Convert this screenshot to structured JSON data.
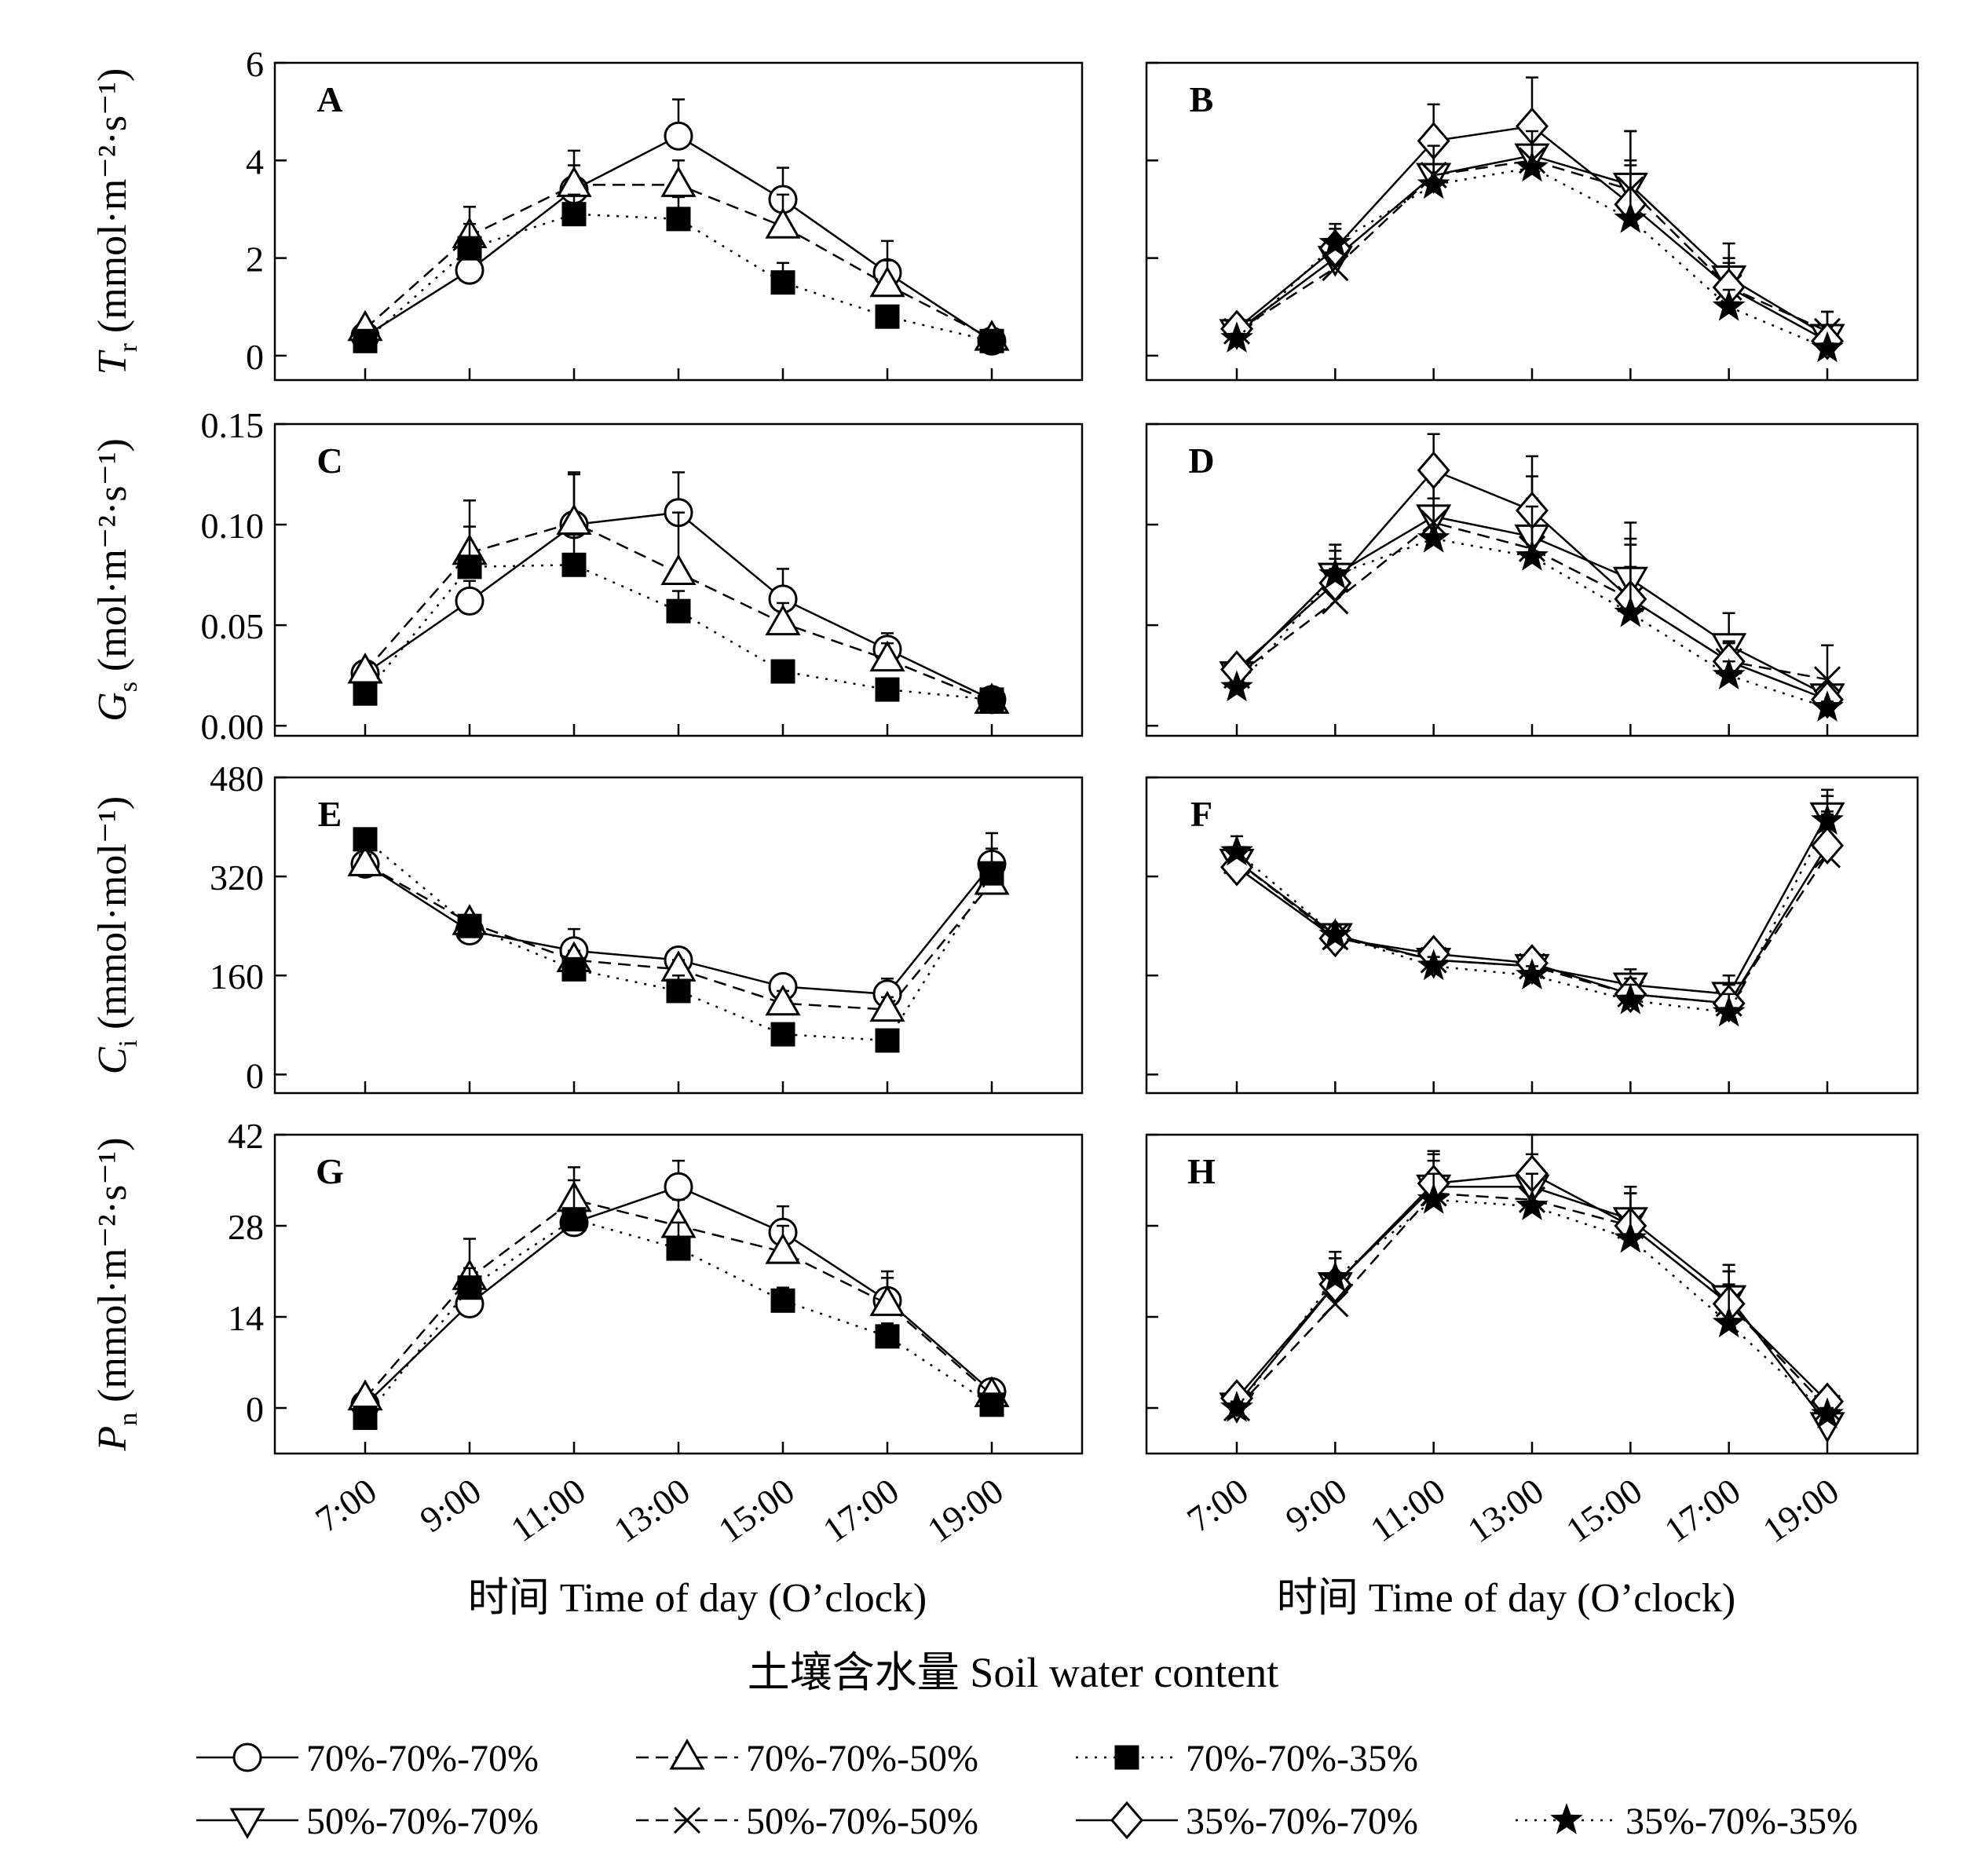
{
  "figure": {
    "xlabel": "时间  Time of day (O’clock)",
    "soil_label": "土壤含水量 Soil water content"
  },
  "series_styles": [
    {
      "key": "s1",
      "name": "70%-70%-70%",
      "marker": "circle",
      "dash": "solid"
    },
    {
      "key": "s2",
      "name": "70%-70%-50%",
      "marker": "triangle",
      "dash": "dashed"
    },
    {
      "key": "s3",
      "name": "70%-70%-35%",
      "marker": "square",
      "dash": "dotted"
    },
    {
      "key": "s4",
      "name": "50%-70%-70%",
      "marker": "triangle-down",
      "dash": "solid"
    },
    {
      "key": "s5",
      "name": "50%-70%-50%",
      "marker": "x",
      "dash": "dashed"
    },
    {
      "key": "s6",
      "name": "35%-70%-70%",
      "marker": "diamond",
      "dash": "solid"
    },
    {
      "key": "s7",
      "name": "35%-70%-35%",
      "marker": "star",
      "dash": "dotted"
    }
  ],
  "chart_data": [
    {
      "panel": "A",
      "type": "line",
      "ylabel_main": "T",
      "ylabel_sub": "r",
      "ylabel_unit": "(mmol·m⁻²·s⁻¹)",
      "x": [
        "7:00",
        "9:00",
        "11:00",
        "13:00",
        "15:00",
        "17:00",
        "19:00"
      ],
      "ylim": [
        -0.5,
        6
      ],
      "yticks": [
        0,
        2,
        4,
        6
      ],
      "ytick_labels": [
        "0",
        "2",
        "4",
        "6"
      ],
      "series": [
        {
          "key": "s1",
          "values": [
            0.4,
            1.75,
            3.4,
            4.5,
            3.2,
            1.7,
            0.3
          ],
          "err": [
            0.1,
            0.3,
            0.5,
            0.75,
            0.65,
            0.65,
            0.1
          ]
        },
        {
          "key": "s2",
          "values": [
            0.55,
            2.45,
            3.5,
            3.5,
            2.65,
            1.45,
            0.35
          ],
          "err": [
            0.1,
            0.6,
            0.7,
            0.5,
            0.65,
            0.5,
            0.1
          ]
        },
        {
          "key": "s3",
          "values": [
            0.3,
            2.2,
            2.9,
            2.8,
            1.5,
            0.8,
            0.3
          ],
          "err": [
            0.1,
            0.5,
            0.4,
            0.45,
            0.4,
            0.15,
            0.1
          ]
        }
      ]
    },
    {
      "panel": "B",
      "type": "line",
      "x": [
        "7:00",
        "9:00",
        "11:00",
        "13:00",
        "15:00",
        "17:00",
        "19:00"
      ],
      "ylim": [
        -0.5,
        6
      ],
      "yticks": [
        0,
        2,
        4,
        6
      ],
      "series": [
        {
          "key": "s4",
          "values": [
            0.5,
            2.0,
            3.7,
            4.1,
            3.5,
            1.6,
            0.4
          ],
          "err": [
            0.1,
            0.4,
            0.8,
            0.8,
            1.1,
            0.7,
            0.5
          ]
        },
        {
          "key": "s5",
          "values": [
            0.5,
            1.8,
            3.7,
            4.0,
            3.4,
            1.4,
            0.5
          ],
          "err": [
            0.1,
            0.5,
            0.9,
            0.9,
            1.2,
            0.6,
            0.4
          ]
        },
        {
          "key": "s6",
          "values": [
            0.55,
            2.2,
            4.4,
            4.7,
            3.1,
            1.4,
            0.3
          ],
          "err": [
            0.1,
            0.4,
            0.75,
            1.0,
            0.9,
            0.5,
            0.1
          ]
        },
        {
          "key": "s7",
          "values": [
            0.35,
            2.3,
            3.5,
            3.85,
            2.8,
            1.0,
            0.15
          ],
          "err": [
            0.1,
            0.4,
            0.8,
            0.75,
            1.1,
            0.35,
            0.1
          ]
        }
      ]
    },
    {
      "panel": "C",
      "type": "line",
      "ylabel_main": "G",
      "ylabel_sub": "s",
      "ylabel_unit": "(mol·m⁻²·s⁻¹)",
      "x": [
        "7:00",
        "9:00",
        "11:00",
        "13:00",
        "15:00",
        "17:00",
        "19:00"
      ],
      "ylim": [
        -0.005,
        0.15
      ],
      "yticks": [
        0,
        0.05,
        0.1,
        0.15
      ],
      "ytick_labels": [
        "0.00",
        "0.05",
        "0.10",
        "0.15"
      ],
      "series": [
        {
          "key": "s1",
          "values": [
            0.026,
            0.062,
            0.1,
            0.106,
            0.063,
            0.038,
            0.013
          ],
          "err": [
            0.003,
            0.01,
            0.025,
            0.02,
            0.015,
            0.008,
            0.003
          ]
        },
        {
          "key": "s2",
          "values": [
            0.027,
            0.086,
            0.101,
            0.076,
            0.051,
            0.033,
            0.012
          ],
          "err": [
            0.003,
            0.026,
            0.025,
            0.03,
            0.01,
            0.008,
            0.003
          ]
        },
        {
          "key": "s3",
          "values": [
            0.016,
            0.079,
            0.08,
            0.057,
            0.027,
            0.018,
            0.013
          ],
          "err": [
            0.002,
            0.02,
            0.015,
            0.01,
            0.003,
            0.002,
            0.002
          ]
        }
      ]
    },
    {
      "panel": "D",
      "type": "line",
      "x": [
        "7:00",
        "9:00",
        "11:00",
        "13:00",
        "15:00",
        "17:00",
        "19:00"
      ],
      "ylim": [
        -0.005,
        0.15
      ],
      "yticks": [
        0,
        0.05,
        0.1,
        0.15
      ],
      "series": [
        {
          "key": "s4",
          "values": [
            0.026,
            0.075,
            0.104,
            0.094,
            0.073,
            0.04,
            0.015
          ],
          "err": [
            0.003,
            0.015,
            0.02,
            0.03,
            0.028,
            0.016,
            0.004
          ]
        },
        {
          "key": "s5",
          "values": [
            0.025,
            0.062,
            0.101,
            0.088,
            0.063,
            0.032,
            0.023
          ],
          "err": [
            0.003,
            0.016,
            0.02,
            0.025,
            0.03,
            0.01,
            0.017
          ]
        },
        {
          "key": "s6",
          "values": [
            0.028,
            0.071,
            0.127,
            0.107,
            0.063,
            0.032,
            0.013
          ],
          "err": [
            0.003,
            0.012,
            0.018,
            0.027,
            0.027,
            0.009,
            0.003
          ]
        },
        {
          "key": "s7",
          "values": [
            0.019,
            0.075,
            0.093,
            0.084,
            0.056,
            0.025,
            0.009
          ],
          "err": [
            0.003,
            0.012,
            0.02,
            0.025,
            0.023,
            0.007,
            0.003
          ]
        }
      ]
    },
    {
      "panel": "E",
      "type": "line",
      "ylabel_main": "C",
      "ylabel_sub": "i",
      "ylabel_unit": "(mmol·mol⁻¹)",
      "x": [
        "7:00",
        "9:00",
        "11:00",
        "13:00",
        "15:00",
        "17:00",
        "19:00"
      ],
      "ylim": [
        -30,
        480
      ],
      "yticks": [
        0,
        160,
        320,
        480
      ],
      "ytick_labels": [
        "0",
        "160",
        "320",
        "480"
      ],
      "series": [
        {
          "key": "s1",
          "values": [
            340,
            232,
            200,
            185,
            142,
            130,
            340
          ],
          "err": [
            15,
            12,
            35,
            10,
            15,
            25,
            50
          ]
        },
        {
          "key": "s2",
          "values": [
            340,
            245,
            185,
            170,
            115,
            105,
            310
          ],
          "err": [
            15,
            12,
            15,
            15,
            20,
            20,
            55
          ]
        },
        {
          "key": "s3",
          "values": [
            380,
            240,
            170,
            135,
            65,
            55,
            325
          ],
          "err": [
            15,
            10,
            15,
            25,
            10,
            10,
            15
          ]
        }
      ]
    },
    {
      "panel": "F",
      "type": "line",
      "x": [
        "7:00",
        "9:00",
        "11:00",
        "13:00",
        "15:00",
        "17:00",
        "19:00"
      ],
      "ylim": [
        -30,
        480
      ],
      "yticks": [
        0,
        160,
        320,
        480
      ],
      "series": [
        {
          "key": "s4",
          "values": [
            345,
            225,
            185,
            175,
            145,
            130,
            420
          ],
          "err": [
            20,
            15,
            15,
            15,
            25,
            30,
            30
          ]
        },
        {
          "key": "s5",
          "values": [
            345,
            222,
            185,
            175,
            130,
            115,
            355
          ],
          "err": [
            20,
            15,
            15,
            15,
            25,
            30,
            70
          ]
        },
        {
          "key": "s6",
          "values": [
            335,
            220,
            195,
            180,
            130,
            115,
            370
          ],
          "err": [
            20,
            15,
            15,
            15,
            25,
            30,
            50
          ]
        },
        {
          "key": "s7",
          "values": [
            360,
            225,
            175,
            160,
            120,
            100,
            410
          ],
          "err": [
            25,
            15,
            15,
            15,
            25,
            30,
            50
          ]
        }
      ]
    },
    {
      "panel": "G",
      "type": "line",
      "ylabel_main": "P",
      "ylabel_sub": "n",
      "ylabel_unit": "(mmol·m⁻²·s⁻¹)",
      "x": [
        "7:00",
        "9:00",
        "11:00",
        "13:00",
        "15:00",
        "17:00",
        "19:00"
      ],
      "ylim": [
        -7,
        42
      ],
      "yticks": [
        0,
        14,
        28,
        42
      ],
      "ytick_labels": [
        "0",
        "14",
        "28",
        "42"
      ],
      "series": [
        {
          "key": "s1",
          "values": [
            0.5,
            16,
            28.5,
            34,
            27,
            16.5,
            2.5
          ],
          "err": [
            1,
            3,
            4,
            4,
            4,
            4.5,
            1
          ]
        },
        {
          "key": "s2",
          "values": [
            1.5,
            20,
            32,
            28,
            24,
            16,
            2
          ],
          "err": [
            1,
            6,
            5,
            4,
            4,
            4,
            1
          ]
        },
        {
          "key": "s3",
          "values": [
            -1.5,
            18.5,
            29,
            24.5,
            16.5,
            11,
            0.5
          ],
          "err": [
            0.7,
            3,
            6,
            4,
            2,
            2,
            0.5
          ]
        }
      ]
    },
    {
      "panel": "H",
      "type": "line",
      "x": [
        "7:00",
        "9:00",
        "11:00",
        "13:00",
        "15:00",
        "17:00",
        "19:00"
      ],
      "ylim": [
        -7,
        42
      ],
      "yticks": [
        0,
        14,
        28,
        42
      ],
      "series": [
        {
          "key": "s4",
          "values": [
            0.5,
            19,
            34,
            34,
            29,
            17,
            -2.5
          ],
          "err": [
            1,
            4,
            5,
            5,
            5,
            5,
            1.5
          ]
        },
        {
          "key": "s5",
          "values": [
            0,
            16,
            33,
            32,
            28,
            16,
            0
          ],
          "err": [
            1,
            4,
            5,
            5,
            5,
            5,
            1.5
          ]
        },
        {
          "key": "s6",
          "values": [
            1.5,
            19,
            34.5,
            36,
            28,
            16,
            1
          ],
          "err": [
            1,
            4,
            5,
            6,
            5,
            5,
            1
          ]
        },
        {
          "key": "s7",
          "values": [
            0,
            20,
            32,
            31,
            26,
            13,
            -1
          ],
          "err": [
            1,
            4,
            4,
            5,
            7,
            6,
            1
          ]
        }
      ]
    }
  ]
}
